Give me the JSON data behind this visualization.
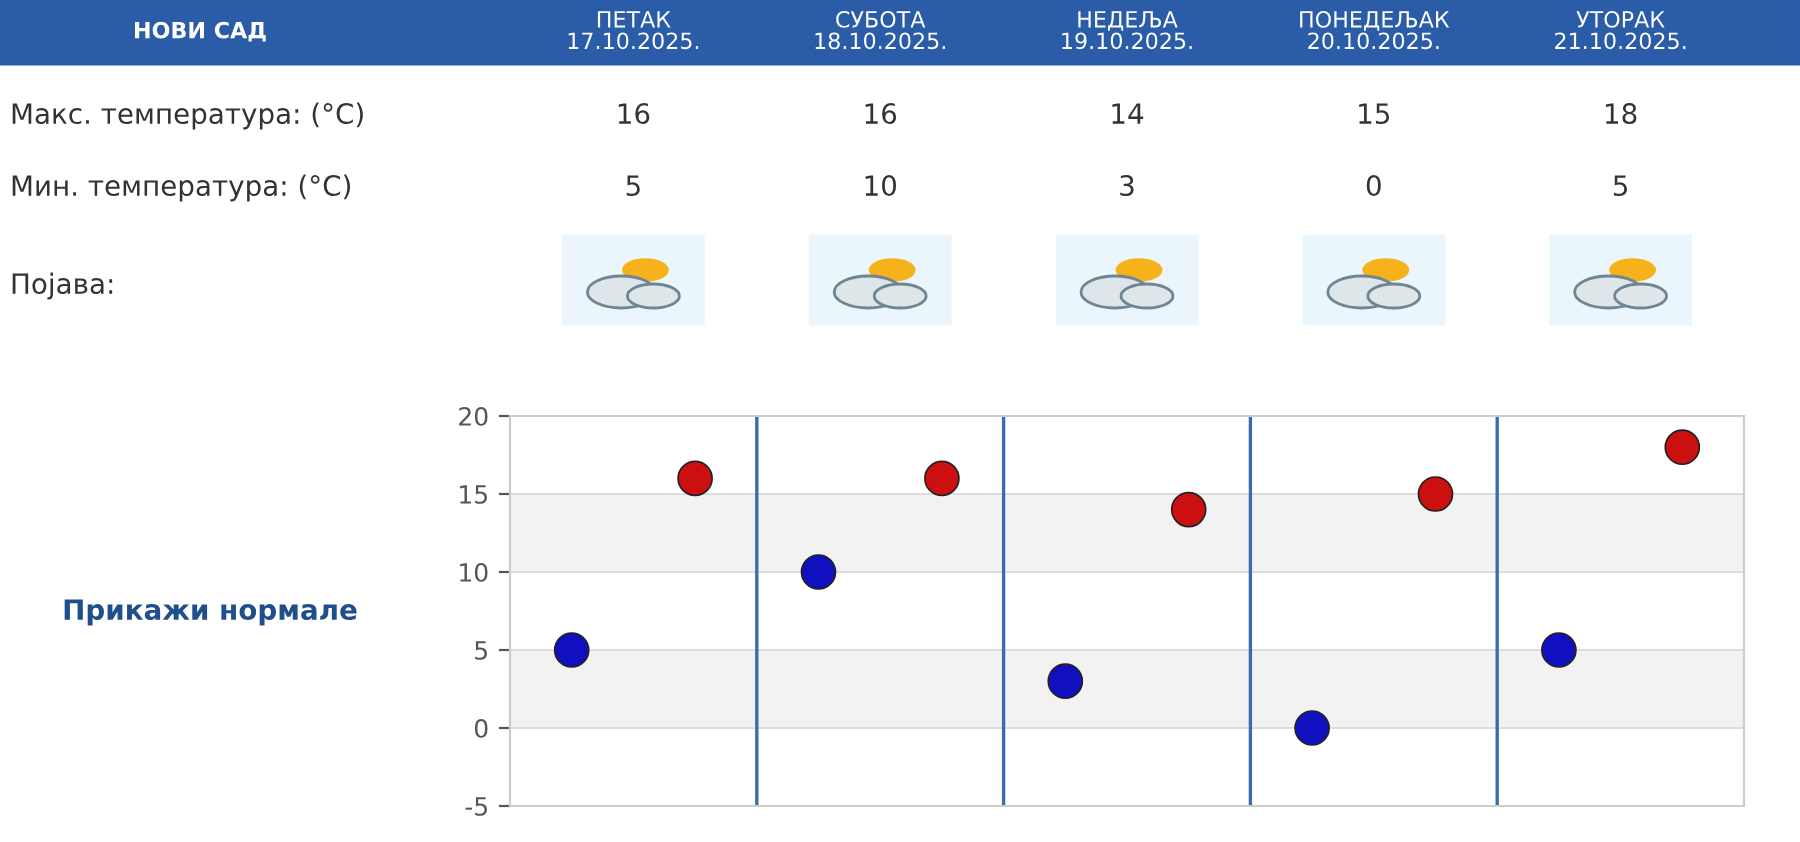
{
  "chart_data": {
    "type": "scatter",
    "title": "НОВИ САД",
    "categories": [
      null,
      null,
      null,
      null,
      null
    ],
    "series": [
      {
        "color": "#1010c0",
        "values": [
          5,
          10,
          3,
          0,
          5
        ]
      },
      {
        "color": "#cc1010",
        "values": [
          16,
          16,
          14,
          15,
          18
        ]
      }
    ],
    "ylim": [
      -5,
      20
    ],
    "yticks": [
      -5,
      0,
      5,
      10,
      15,
      20
    ],
    "bands": [
      {
        "axis": "y",
        "from": 10,
        "to": 15,
        "color": "#f2f2f2"
      },
      {
        "axis": "y",
        "from": 0,
        "to": 5,
        "color": "#f2f2f2"
      }
    ],
    "grid": true,
    "legend": false,
    "marker": "circle",
    "data_labels": true,
    "annotations": [
      "Макс. температура: (°C)",
      "Мин. температура: (°C)",
      "Појава:",
      "Прикажи нормале",
      "ПЕТАК\n17.10.2025.",
      "СУБОТА\n18.10.2025.",
      "НЕДЕЉА\n19.10.2025.",
      "ПОНЕДЕЉАК\n20.10.2025.",
      "УТОРАК\n21.10.2025."
    ]
  }
}
